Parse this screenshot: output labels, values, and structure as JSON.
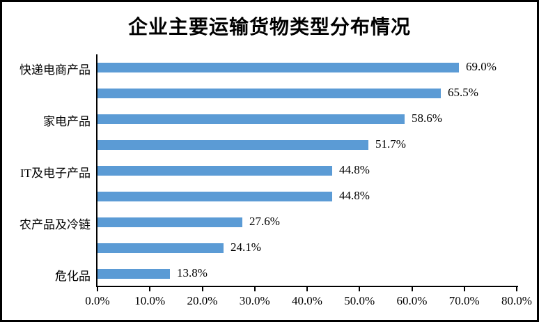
{
  "title": "企业主要运输货物类型分布情况",
  "colors": {
    "bar": "#5B9BD5",
    "axis": "#000000",
    "border": "#000000",
    "background": "#FFFFFF",
    "text": "#000000"
  },
  "chart_data": {
    "type": "bar",
    "orientation": "horizontal",
    "title": "企业主要运输货物类型分布情况",
    "categories": [
      "快递电商产品",
      "",
      "家电产品",
      "",
      "IT及电子产品",
      "",
      "农产品及冷链",
      "",
      "危化品"
    ],
    "values": [
      69.0,
      65.5,
      58.6,
      51.7,
      44.8,
      44.8,
      27.6,
      24.1,
      13.8
    ],
    "data_labels": [
      "69.0%",
      "65.5%",
      "58.6%",
      "51.7%",
      "44.8%",
      "44.8%",
      "27.6%",
      "24.1%",
      "13.8%"
    ],
    "x_ticks": [
      "0.0%",
      "10.0%",
      "20.0%",
      "30.0%",
      "40.0%",
      "50.0%",
      "60.0%",
      "70.0%",
      "80.0%"
    ],
    "xlim": [
      0,
      80
    ],
    "xlabel": "",
    "ylabel": "",
    "grid": false,
    "legend": false,
    "data_labels_position": "outside-end"
  }
}
